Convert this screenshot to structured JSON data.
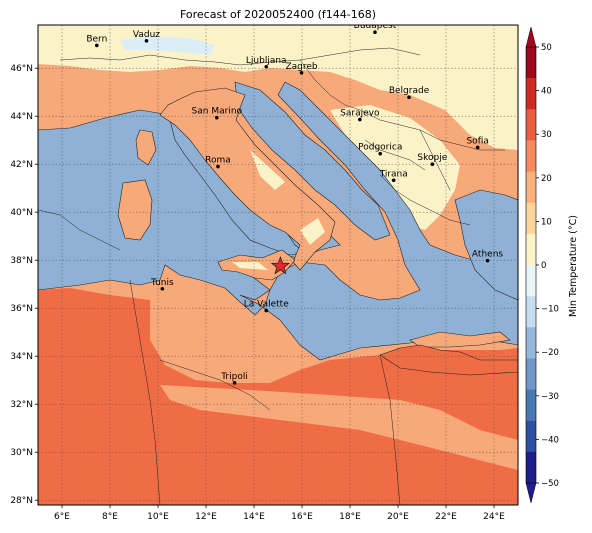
{
  "title": "Forecast of 2020052400 (f144-168)",
  "map": {
    "lon_ticks": [
      "6°E",
      "8°E",
      "10°E",
      "12°E",
      "14°E",
      "16°E",
      "18°E",
      "20°E",
      "22°E",
      "24°E"
    ],
    "lat_ticks": [
      "46°N",
      "44°N",
      "42°N",
      "40°N",
      "38°N",
      "36°N",
      "34°N",
      "32°N",
      "30°N",
      "28°N"
    ],
    "cities": [
      {
        "name": "Bern",
        "lon": 7.45,
        "lat": 46.95
      },
      {
        "name": "Vaduz",
        "lon": 9.52,
        "lat": 47.14
      },
      {
        "name": "Budapest",
        "lon": 19.04,
        "lat": 47.5
      },
      {
        "name": "Ljubljana",
        "lon": 14.51,
        "lat": 46.06
      },
      {
        "name": "Zagreb",
        "lon": 15.98,
        "lat": 45.81
      },
      {
        "name": "Belgrade",
        "lon": 20.46,
        "lat": 44.79
      },
      {
        "name": "San Marino",
        "lon": 12.45,
        "lat": 43.94
      },
      {
        "name": "Sarajevo",
        "lon": 18.41,
        "lat": 43.86
      },
      {
        "name": "Sofia",
        "lon": 23.32,
        "lat": 42.7
      },
      {
        "name": "Podgorica",
        "lon": 19.26,
        "lat": 42.44
      },
      {
        "name": "Skopje",
        "lon": 21.43,
        "lat": 42.0
      },
      {
        "name": "Roma",
        "lon": 12.5,
        "lat": 41.9
      },
      {
        "name": "Tirana",
        "lon": 19.82,
        "lat": 41.33
      },
      {
        "name": "Athens",
        "lon": 23.73,
        "lat": 37.98
      },
      {
        "name": "Tunis",
        "lon": 10.18,
        "lat": 36.81
      },
      {
        "name": "La Valette",
        "lon": 14.51,
        "lat": 35.9
      },
      {
        "name": "Tripoli",
        "lon": 13.19,
        "lat": 32.89
      }
    ],
    "marker": {
      "symbol": "star",
      "lon": 15.1,
      "lat": 37.75,
      "color": "#e8262a"
    }
  },
  "colorbar": {
    "label": "Min Temperature (°C)",
    "ticks": [
      "50",
      "40",
      "30",
      "20",
      "10",
      "0",
      "−10",
      "−20",
      "−30",
      "−40",
      "−50"
    ],
    "colors": [
      "#1f1f8c",
      "#2f4fa3",
      "#4a78b5",
      "#6f98c8",
      "#93b8dc",
      "#c4def0",
      "#e9f6f8",
      "#fdf3c6",
      "#fcd59a",
      "#f9b07a",
      "#f58a5c",
      "#ea5d3f",
      "#cf2b26",
      "#a0061e"
    ]
  },
  "fill_colors": {
    "sea": "#8fb1d6",
    "warm_10_20": "#fcf2c8",
    "warm_20_30": "#f8a97a",
    "warm_30_40": "#f06c45",
    "cold": "#dbeef7"
  }
}
